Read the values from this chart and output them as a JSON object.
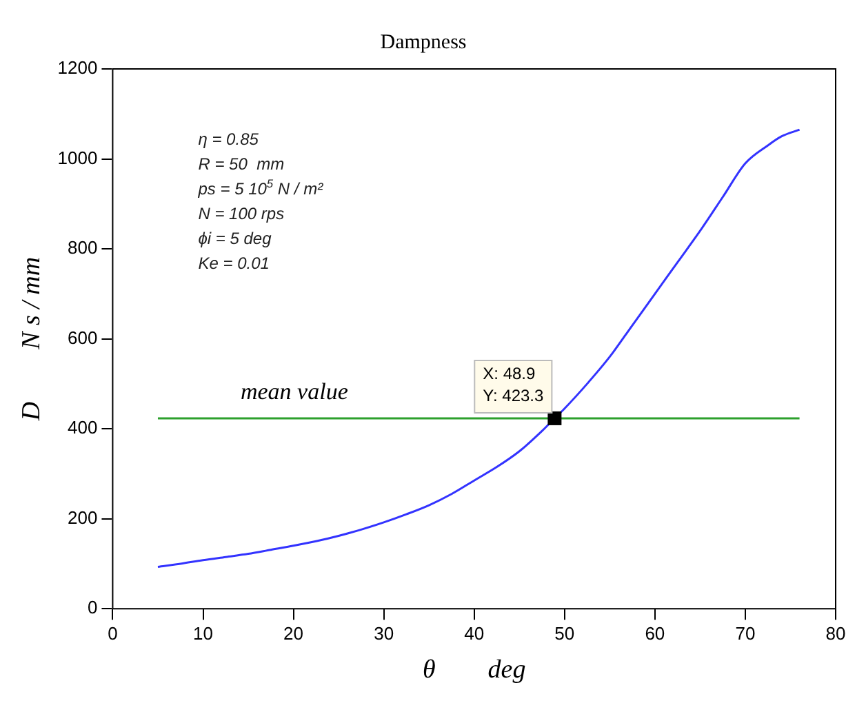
{
  "chart_data": {
    "type": "line",
    "title": "Dampness",
    "xlabel": "θ        deg",
    "ylabel": "D        N s / mm",
    "xlim": [
      0,
      80
    ],
    "xticks": [
      0,
      10,
      20,
      30,
      40,
      50,
      60,
      70,
      80
    ],
    "ylim": [
      0,
      1200
    ],
    "yticks": [
      0,
      200,
      400,
      600,
      800,
      1000,
      1200
    ],
    "grid": false,
    "legend": false,
    "marker": "none",
    "line_style": "solid",
    "series": [
      {
        "color": "#3333ff",
        "x": [
          5,
          7.5,
          10,
          12.5,
          15,
          17.5,
          20,
          22.5,
          25,
          27.5,
          30,
          32.5,
          35,
          37.5,
          40,
          42.5,
          45,
          47.5,
          48.9,
          50,
          52.5,
          55,
          57.5,
          60,
          62.5,
          65,
          67.5,
          70,
          72.5,
          74,
          76
        ],
        "values": [
          93,
          100,
          108,
          115,
          122,
          131,
          140,
          150,
          162,
          176,
          192,
          210,
          230,
          255,
          285,
          315,
          350,
          395,
          423.3,
          445,
          500,
          560,
          630,
          700,
          770,
          840,
          915,
          990,
          1030,
          1050,
          1065
        ]
      },
      {
        "name": "mean value",
        "color": "#2ca02c",
        "x": [
          5,
          76
        ],
        "values": [
          423.3,
          423.3
        ]
      }
    ],
    "annotations": [
      "η = 0.85",
      "R = 50  mm",
      "ps = 5 10$^{5}$ N / m²",
      "N = 100 rps",
      "ϕi = 5 deg",
      "Ke = 0.01",
      {
        "text": "X: 48.9\nY: 423.3",
        "x": 48.9,
        "y": 423.3
      }
    ]
  }
}
